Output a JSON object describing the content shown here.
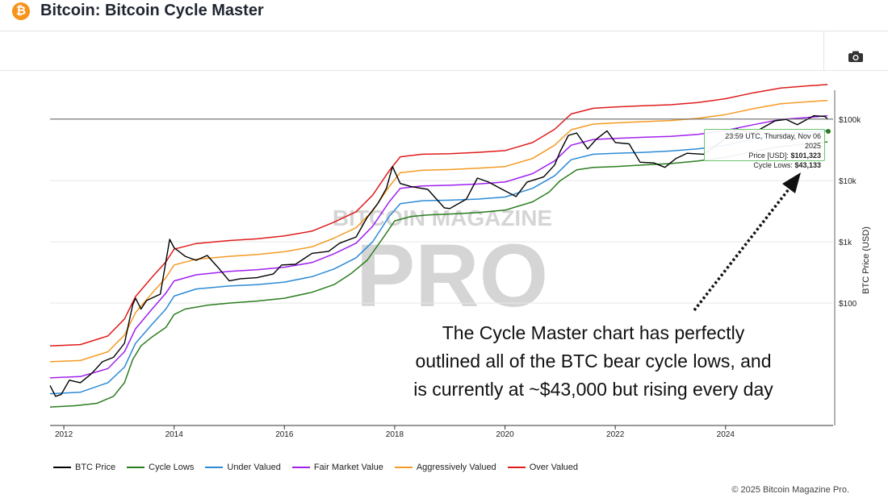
{
  "header": {
    "logo_glyph": "₿",
    "title": "Bitcoin: Bitcoin Cycle Master"
  },
  "toolbar": {
    "camera_icon": "camera-icon"
  },
  "watermark": {
    "top": "BITCOIN MAGAZINE",
    "main": "PRO"
  },
  "annotation": {
    "lines": [
      "The Cycle Master chart has perfectly",
      "outlined all of the BTC bear cycle lows, and",
      "is currently at ~$43,000 but rising every day"
    ]
  },
  "tooltip": {
    "time": "23:59 UTC, Thursday, Nov 06 2025",
    "price_label": "Price [USD]:",
    "price_value": "$101,323",
    "lows_label": "Cycle Lows:",
    "lows_value": "$43,133"
  },
  "copyright": "© 2025 Bitcoin Magazine Pro.",
  "colors": {
    "btc_price": "#000000",
    "cycle_lows": "#2a7d1f",
    "under_valued": "#2b8ad6",
    "fair_market": "#a020f0",
    "aggressive": "#f59a23",
    "over_valued": "#e01b1b"
  },
  "chart_data": {
    "type": "line",
    "y_scale": "log",
    "xlabel": "",
    "ylabel": "BTC Price (USD)",
    "x_ticks": [
      "2012",
      "2014",
      "2016",
      "2018",
      "2020",
      "2022",
      "2024"
    ],
    "y_ticks": [
      "$100",
      "$1k",
      "$10k",
      "$100k"
    ],
    "ylim": [
      1,
      300000
    ],
    "xlim": [
      2011.75,
      2025.95
    ],
    "legend": [
      "BTC Price",
      "Cycle Lows",
      "Under Valued",
      "Fair Market Value",
      "Aggressively Valued",
      "Over Valued"
    ],
    "legend_position": "bottom",
    "series": [
      {
        "name": "BTC Price",
        "points": [
          [
            2011.75,
            4.5
          ],
          [
            2011.85,
            3
          ],
          [
            2011.95,
            3.2
          ],
          [
            2012.1,
            5.5
          ],
          [
            2012.3,
            5
          ],
          [
            2012.5,
            7
          ],
          [
            2012.7,
            11
          ],
          [
            2012.9,
            13
          ],
          [
            2013.1,
            22
          ],
          [
            2013.25,
            95
          ],
          [
            2013.3,
            120
          ],
          [
            2013.4,
            80
          ],
          [
            2013.5,
            110
          ],
          [
            2013.75,
            140
          ],
          [
            2013.92,
            1100
          ],
          [
            2014.0,
            800
          ],
          [
            2014.2,
            580
          ],
          [
            2014.4,
            500
          ],
          [
            2014.6,
            600
          ],
          [
            2014.8,
            380
          ],
          [
            2015.0,
            230
          ],
          [
            2015.2,
            250
          ],
          [
            2015.5,
            260
          ],
          [
            2015.8,
            300
          ],
          [
            2015.95,
            420
          ],
          [
            2016.2,
            430
          ],
          [
            2016.5,
            650
          ],
          [
            2016.8,
            700
          ],
          [
            2017.0,
            950
          ],
          [
            2017.3,
            1200
          ],
          [
            2017.5,
            2500
          ],
          [
            2017.7,
            4300
          ],
          [
            2017.85,
            7500
          ],
          [
            2017.96,
            17000
          ],
          [
            2018.1,
            9000
          ],
          [
            2018.3,
            8000
          ],
          [
            2018.6,
            7200
          ],
          [
            2018.9,
            3600
          ],
          [
            2019.0,
            3500
          ],
          [
            2019.3,
            5000
          ],
          [
            2019.5,
            11000
          ],
          [
            2019.7,
            9500
          ],
          [
            2019.95,
            7200
          ],
          [
            2020.2,
            5500
          ],
          [
            2020.4,
            9500
          ],
          [
            2020.7,
            11500
          ],
          [
            2020.9,
            18000
          ],
          [
            2021.0,
            30000
          ],
          [
            2021.15,
            55000
          ],
          [
            2021.3,
            60000
          ],
          [
            2021.5,
            33000
          ],
          [
            2021.65,
            47000
          ],
          [
            2021.85,
            65000
          ],
          [
            2022.0,
            42000
          ],
          [
            2022.25,
            40000
          ],
          [
            2022.45,
            20000
          ],
          [
            2022.7,
            19500
          ],
          [
            2022.9,
            16500
          ],
          [
            2023.1,
            23000
          ],
          [
            2023.3,
            28000
          ],
          [
            2023.6,
            27000
          ],
          [
            2023.9,
            42000
          ],
          [
            2024.2,
            70000
          ],
          [
            2024.5,
            60000
          ],
          [
            2024.9,
            95000
          ],
          [
            2025.1,
            100000
          ],
          [
            2025.3,
            82000
          ],
          [
            2025.6,
            115000
          ],
          [
            2025.8,
            112000
          ],
          [
            2025.85,
            101323
          ]
        ]
      },
      {
        "name": "Cycle Lows",
        "points": [
          [
            2011.75,
            2
          ],
          [
            2012.2,
            2.1
          ],
          [
            2012.6,
            2.3
          ],
          [
            2012.9,
            3
          ],
          [
            2013.1,
            5
          ],
          [
            2013.25,
            12
          ],
          [
            2013.4,
            20
          ],
          [
            2013.6,
            28
          ],
          [
            2013.85,
            40
          ],
          [
            2014.0,
            65
          ],
          [
            2014.2,
            80
          ],
          [
            2014.6,
            92
          ],
          [
            2015.0,
            100
          ],
          [
            2015.5,
            108
          ],
          [
            2016.0,
            120
          ],
          [
            2016.5,
            150
          ],
          [
            2016.9,
            200
          ],
          [
            2017.2,
            300
          ],
          [
            2017.5,
            500
          ],
          [
            2017.8,
            1200
          ],
          [
            2018.0,
            2200
          ],
          [
            2018.3,
            2600
          ],
          [
            2018.6,
            2750
          ],
          [
            2019.0,
            2850
          ],
          [
            2019.5,
            3000
          ],
          [
            2020.0,
            3300
          ],
          [
            2020.5,
            4500
          ],
          [
            2020.8,
            6500
          ],
          [
            2021.0,
            10000
          ],
          [
            2021.3,
            15000
          ],
          [
            2021.6,
            16500
          ],
          [
            2022.0,
            17000
          ],
          [
            2022.5,
            18000
          ],
          [
            2023.0,
            19000
          ],
          [
            2023.5,
            21000
          ],
          [
            2024.0,
            24000
          ],
          [
            2024.5,
            30000
          ],
          [
            2025.0,
            36000
          ],
          [
            2025.5,
            40000
          ],
          [
            2025.85,
            43133
          ]
        ]
      },
      {
        "name": "Under Valued",
        "points": [
          [
            2011.75,
            3.3
          ],
          [
            2012.3,
            3.5
          ],
          [
            2012.8,
            5
          ],
          [
            2013.1,
            9
          ],
          [
            2013.3,
            22
          ],
          [
            2013.6,
            45
          ],
          [
            2013.85,
            80
          ],
          [
            2014.0,
            130
          ],
          [
            2014.4,
            170
          ],
          [
            2015.0,
            190
          ],
          [
            2015.5,
            200
          ],
          [
            2016.0,
            220
          ],
          [
            2016.5,
            270
          ],
          [
            2016.9,
            360
          ],
          [
            2017.3,
            550
          ],
          [
            2017.6,
            1000
          ],
          [
            2017.9,
            2600
          ],
          [
            2018.1,
            4200
          ],
          [
            2018.5,
            4700
          ],
          [
            2019.0,
            4800
          ],
          [
            2019.5,
            5000
          ],
          [
            2020.0,
            5400
          ],
          [
            2020.5,
            7500
          ],
          [
            2020.9,
            12000
          ],
          [
            2021.2,
            22000
          ],
          [
            2021.6,
            27000
          ],
          [
            2022.0,
            28000
          ],
          [
            2022.5,
            29000
          ],
          [
            2023.0,
            30500
          ],
          [
            2023.5,
            33000
          ],
          [
            2024.0,
            38000
          ],
          [
            2024.5,
            48000
          ],
          [
            2025.0,
            58000
          ],
          [
            2025.5,
            62000
          ],
          [
            2025.85,
            66000
          ]
        ]
      },
      {
        "name": "Fair Market Value",
        "points": [
          [
            2011.75,
            6
          ],
          [
            2012.3,
            6.3
          ],
          [
            2012.8,
            8.5
          ],
          [
            2013.1,
            16
          ],
          [
            2013.3,
            38
          ],
          [
            2013.6,
            80
          ],
          [
            2013.85,
            145
          ],
          [
            2014.0,
            230
          ],
          [
            2014.4,
            290
          ],
          [
            2015.0,
            330
          ],
          [
            2015.5,
            350
          ],
          [
            2016.0,
            385
          ],
          [
            2016.5,
            460
          ],
          [
            2016.9,
            640
          ],
          [
            2017.3,
            950
          ],
          [
            2017.6,
            1800
          ],
          [
            2017.9,
            4500
          ],
          [
            2018.1,
            7500
          ],
          [
            2018.5,
            8200
          ],
          [
            2019.0,
            8400
          ],
          [
            2019.5,
            8800
          ],
          [
            2020.0,
            9500
          ],
          [
            2020.5,
            13000
          ],
          [
            2020.9,
            21000
          ],
          [
            2021.2,
            38000
          ],
          [
            2021.6,
            47000
          ],
          [
            2022.0,
            49000
          ],
          [
            2022.5,
            51000
          ],
          [
            2023.0,
            53000
          ],
          [
            2023.5,
            57000
          ],
          [
            2024.0,
            66000
          ],
          [
            2024.5,
            82000
          ],
          [
            2025.0,
            100000
          ],
          [
            2025.5,
            108000
          ],
          [
            2025.85,
            115000
          ]
        ]
      },
      {
        "name": "Aggressively Valued",
        "points": [
          [
            2011.75,
            11
          ],
          [
            2012.3,
            11.5
          ],
          [
            2012.8,
            16
          ],
          [
            2013.1,
            30
          ],
          [
            2013.3,
            70
          ],
          [
            2013.6,
            145
          ],
          [
            2013.85,
            260
          ],
          [
            2014.0,
            420
          ],
          [
            2014.4,
            520
          ],
          [
            2015.0,
            580
          ],
          [
            2015.5,
            620
          ],
          [
            2016.0,
            690
          ],
          [
            2016.5,
            830
          ],
          [
            2016.9,
            1150
          ],
          [
            2017.3,
            1700
          ],
          [
            2017.6,
            3200
          ],
          [
            2017.9,
            8000
          ],
          [
            2018.1,
            13500
          ],
          [
            2018.5,
            14800
          ],
          [
            2019.0,
            15200
          ],
          [
            2019.5,
            16000
          ],
          [
            2020.0,
            17000
          ],
          [
            2020.5,
            23000
          ],
          [
            2020.9,
            38000
          ],
          [
            2021.2,
            68000
          ],
          [
            2021.6,
            84000
          ],
          [
            2022.0,
            88000
          ],
          [
            2022.5,
            92000
          ],
          [
            2023.0,
            96000
          ],
          [
            2023.5,
            104000
          ],
          [
            2024.0,
            120000
          ],
          [
            2024.5,
            150000
          ],
          [
            2025.0,
            180000
          ],
          [
            2025.5,
            195000
          ],
          [
            2025.85,
            205000
          ]
        ]
      },
      {
        "name": "Over Valued",
        "points": [
          [
            2011.75,
            20
          ],
          [
            2012.3,
            21
          ],
          [
            2012.8,
            29
          ],
          [
            2013.1,
            55
          ],
          [
            2013.3,
            128
          ],
          [
            2013.6,
            265
          ],
          [
            2013.85,
            470
          ],
          [
            2014.0,
            760
          ],
          [
            2014.4,
            940
          ],
          [
            2015.0,
            1050
          ],
          [
            2015.5,
            1120
          ],
          [
            2016.0,
            1250
          ],
          [
            2016.5,
            1500
          ],
          [
            2016.9,
            2100
          ],
          [
            2017.3,
            3100
          ],
          [
            2017.6,
            5800
          ],
          [
            2017.9,
            14500
          ],
          [
            2018.1,
            24500
          ],
          [
            2018.5,
            27000
          ],
          [
            2019.0,
            27500
          ],
          [
            2019.5,
            29000
          ],
          [
            2020.0,
            31000
          ],
          [
            2020.5,
            42000
          ],
          [
            2020.9,
            69000
          ],
          [
            2021.2,
            123000
          ],
          [
            2021.6,
            152000
          ],
          [
            2022.0,
            160000
          ],
          [
            2022.5,
            167000
          ],
          [
            2023.0,
            174000
          ],
          [
            2023.5,
            189000
          ],
          [
            2024.0,
            218000
          ],
          [
            2024.5,
            272000
          ],
          [
            2025.0,
            326000
          ],
          [
            2025.5,
            354000
          ],
          [
            2025.85,
            372000
          ]
        ]
      }
    ]
  }
}
